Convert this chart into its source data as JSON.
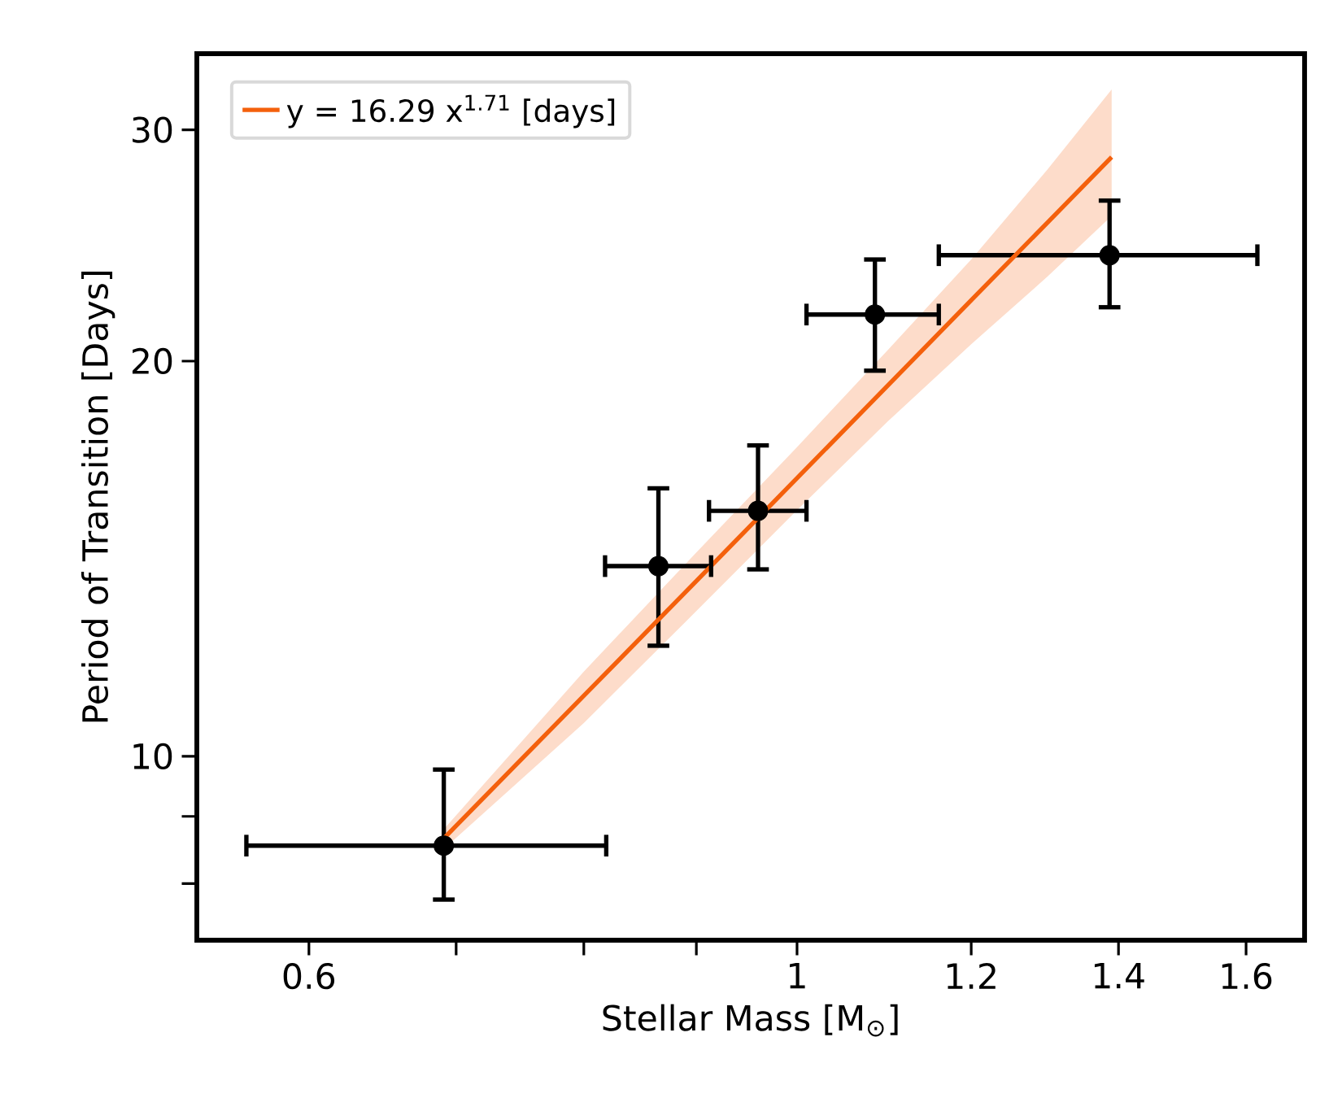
{
  "chart_data": {
    "type": "scatter",
    "xlabel": "Stellar Mass [M$_{⊙}$]",
    "ylabel": "Period of Transition [Days]",
    "log": "xy",
    "legend": "top left",
    "xlim": [
      0.5336,
      1.701
    ],
    "ylim": [
      7.244,
      34.29
    ],
    "xticks": [
      0.6,
      {
        "value": 0.7,
        "label": null
      },
      {
        "value": 0.8,
        "label": null
      },
      {
        "value": 0.9,
        "label": null
      },
      1,
      1.2,
      1.4,
      1.6
    ],
    "yticks": [
      {
        "value": 8,
        "label": null
      },
      {
        "value": 9,
        "label": null
      },
      10,
      20,
      30
    ],
    "series": [
      {
        "marker": "circle",
        "color": "#000000",
        "x": [
          0.691,
          0.865,
          0.96,
          1.085,
          1.387
        ],
        "values": [
          8.55,
          13.96,
          15.38,
          21.7,
          24.08
        ],
        "errors": [
          [
            7.78,
            9.77
          ],
          [
            12.14,
            16.0
          ],
          [
            13.88,
            17.25
          ],
          [
            19.67,
            23.9
          ],
          [
            21.98,
            26.5
          ]
        ],
        "xerrors": [
          [
            0.562,
            0.819
          ],
          [
            0.818,
            0.914
          ],
          [
            0.912,
            1.01
          ],
          [
            1.01,
            1.16
          ],
          [
            1.16,
            1.619
          ]
        ]
      },
      {
        "type": "line",
        "name": "y = 16.29 x$^{1.71}$ [days]",
        "color": "#f4600c",
        "line_style": "solid",
        "marker": "none",
        "x": [
          0.691,
          0.8,
          0.9,
          1.0,
          1.1,
          1.2,
          1.3,
          1.39
        ],
        "values": [
          8.66,
          11.12,
          13.6,
          16.29,
          19.17,
          22.25,
          25.51,
          28.6
        ],
        "lower": [
          8.5,
          10.6,
          12.9,
          15.4,
          18.0,
          20.6,
          23.2,
          25.8
        ],
        "upper": [
          8.8,
          11.6,
          14.3,
          17.2,
          20.4,
          23.9,
          28.0,
          32.2
        ]
      }
    ]
  }
}
